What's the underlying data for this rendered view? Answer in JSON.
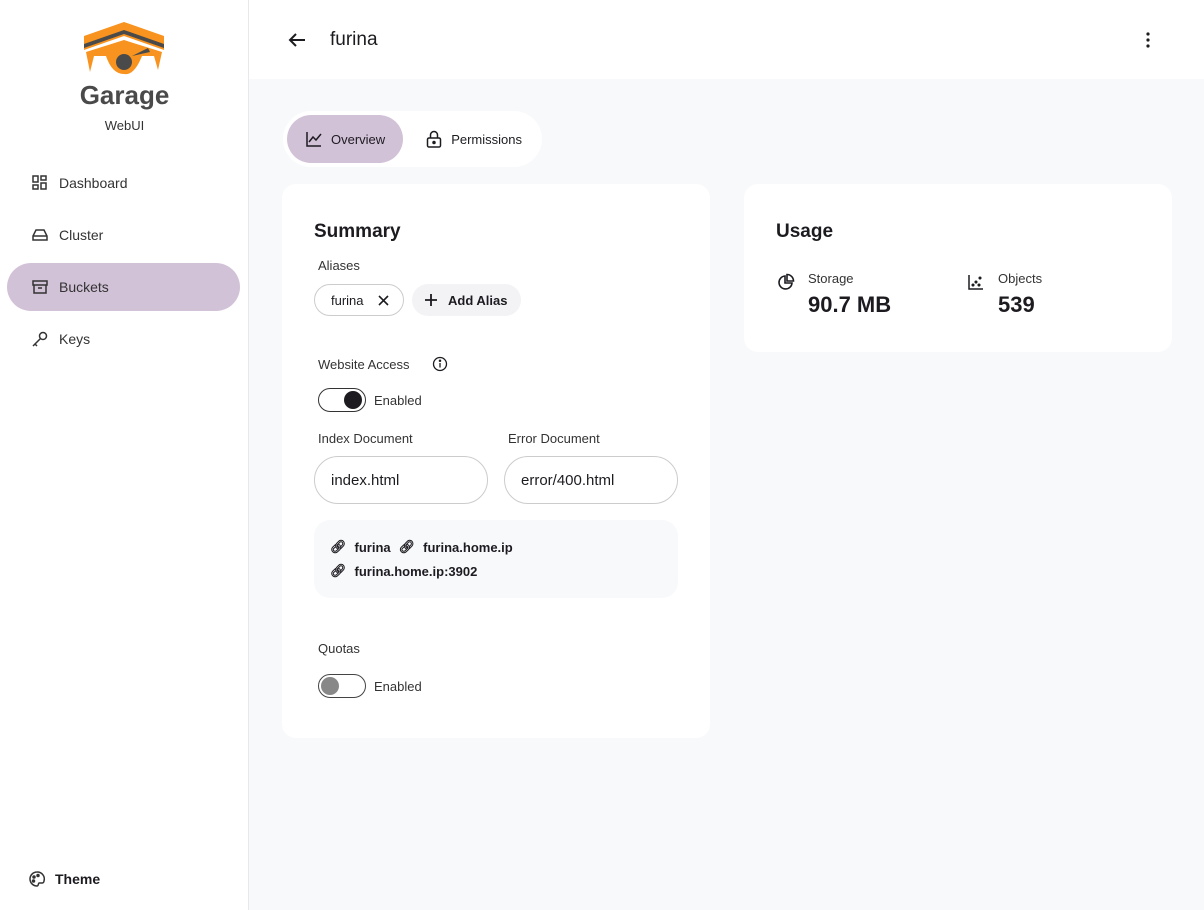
{
  "brand": {
    "name": "Garage",
    "subtitle": "WebUI",
    "colors": {
      "orange": "#f7931e",
      "dark": "#4a4a4a"
    }
  },
  "sidebar": {
    "items": [
      {
        "label": "Dashboard",
        "icon": "dashboard-icon"
      },
      {
        "label": "Cluster",
        "icon": "hard-drive-icon"
      },
      {
        "label": "Buckets",
        "icon": "archive-icon",
        "active": true
      },
      {
        "label": "Keys",
        "icon": "key-icon"
      }
    ],
    "theme_label": "Theme"
  },
  "header": {
    "title": "furina"
  },
  "tabs": [
    {
      "label": "Overview",
      "active": true
    },
    {
      "label": "Permissions"
    }
  ],
  "summary": {
    "title": "Summary",
    "aliases_label": "Aliases",
    "aliases": [
      "furina"
    ],
    "add_alias": "Add Alias",
    "website_access_label": "Website Access",
    "website_enabled_label": "Enabled",
    "website_enabled": true,
    "index_label": "Index Document",
    "index_value": "index.html",
    "error_label": "Error Document",
    "error_value": "error/400.html",
    "links": [
      "furina",
      "furina.home.ip",
      "furina.home.ip:3902"
    ],
    "quotas_label": "Quotas",
    "quotas_enabled_label": "Enabled",
    "quotas_enabled": false
  },
  "usage": {
    "title": "Usage",
    "storage_label": "Storage",
    "storage_value": "90.7 MB",
    "objects_label": "Objects",
    "objects_value": "539"
  }
}
